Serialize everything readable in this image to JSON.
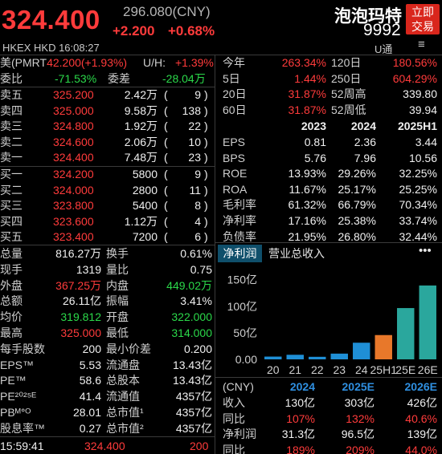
{
  "header": {
    "price": "324.400",
    "ref_price": "296.080(CNY)",
    "change": "+2.200",
    "change_pct": "+0.68%",
    "stock_name": "泡泡玛特",
    "stock_code": "9992",
    "trade_button": [
      "立即",
      "交易"
    ],
    "exchange_line": "HKEX  HKD  16:08:27",
    "u_tong": "U通",
    "menu": "≡"
  },
  "us_row": {
    "label": "美(PMRT",
    "value": "42.200(+1.93%)",
    "uh_label": "U/H:",
    "uh_value": "+1.39%"
  },
  "order_ratio": {
    "label1": "委比",
    "value1": "-71.53%",
    "label2": "委差",
    "value2": "-28.04万"
  },
  "asks": [
    {
      "label": "卖五",
      "price": "325.200",
      "volume": "2.42万",
      "count": "9"
    },
    {
      "label": "卖四",
      "price": "325.000",
      "volume": "9.58万",
      "count": "138"
    },
    {
      "label": "卖三",
      "price": "324.800",
      "volume": "1.92万",
      "count": "22"
    },
    {
      "label": "卖二",
      "price": "324.600",
      "volume": "2.06万",
      "count": "10"
    },
    {
      "label": "卖一",
      "price": "324.400",
      "volume": "7.48万",
      "count": "23"
    }
  ],
  "bids": [
    {
      "label": "买一",
      "price": "324.200",
      "volume": "5800",
      "count": "9"
    },
    {
      "label": "买二",
      "price": "324.000",
      "volume": "2800",
      "count": "11"
    },
    {
      "label": "买三",
      "price": "323.800",
      "volume": "5400",
      "count": "8"
    },
    {
      "label": "买四",
      "price": "323.600",
      "volume": "1.12万",
      "count": "4"
    },
    {
      "label": "买五",
      "price": "323.400",
      "volume": "7200",
      "count": "6"
    }
  ],
  "stats": [
    {
      "l1": "总量",
      "v1": "816.27万",
      "c1": "white",
      "l2": "换手",
      "v2": "0.61%",
      "c2": "white"
    },
    {
      "l1": "现手",
      "v1": "1319",
      "c1": "white",
      "l2": "量比",
      "v2": "0.75",
      "c2": "white"
    },
    {
      "l1": "外盘",
      "v1": "367.25万",
      "c1": "red",
      "l2": "内盘",
      "v2": "449.02万",
      "c2": "green"
    },
    {
      "l1": "总额",
      "v1": "26.11亿",
      "c1": "white",
      "l2": "振幅",
      "v2": "3.41%",
      "c2": "white"
    },
    {
      "l1": "均价",
      "v1": "319.812",
      "c1": "green",
      "l2": "开盘",
      "v2": "322.000",
      "c2": "green"
    },
    {
      "l1": "最高",
      "v1": "325.000",
      "c1": "red",
      "l2": "最低",
      "v2": "314.000",
      "c2": "green"
    },
    {
      "l1": "每手股数",
      "v1": "200",
      "c1": "white",
      "l2": "最小价差",
      "v2": "0.200",
      "c2": "white"
    },
    {
      "l1": "EPS™",
      "v1": "5.53",
      "c1": "white",
      "l2": "流通盘",
      "v2": "13.43亿",
      "c2": "white"
    },
    {
      "l1": "PE™",
      "v1": "58.6",
      "c1": "white",
      "l2": "总股本",
      "v2": "13.43亿",
      "c2": "white"
    },
    {
      "l1": "PE²⁰²⁵ᴱ",
      "v1": "41.4",
      "c1": "white",
      "l2": "流通值",
      "v2": "4357亿",
      "c2": "white"
    },
    {
      "l1": "PBᴹᐤᴼ",
      "v1": "28.01",
      "c1": "white",
      "l2": "总市值¹",
      "v2": "4357亿",
      "c2": "white"
    },
    {
      "l1": "股息率™",
      "v1": "0.27",
      "c1": "white",
      "l2": "总市值²",
      "v2": "4357亿",
      "c2": "white"
    }
  ],
  "last_tick": {
    "time": "15:59:41",
    "price": "324.400",
    "volume": "200"
  },
  "perf": [
    {
      "l1": "今年",
      "v1": "263.34%",
      "l2": "120日",
      "v2": "180.56%"
    },
    {
      "l1": "5日",
      "v1": "1.44%",
      "l2": "250日",
      "v2": "604.29%"
    },
    {
      "l1": "20日",
      "v1": "31.87%",
      "l2": "52周高",
      "v2": "339.80"
    },
    {
      "l1": "60日",
      "v1": "31.87%",
      "l2": "52周低",
      "v2": "39.94"
    }
  ],
  "fin": {
    "headers": [
      "2023",
      "2024",
      "2025H1"
    ],
    "rows": [
      {
        "label": "EPS",
        "values": [
          "0.81",
          "2.36",
          "3.44"
        ]
      },
      {
        "label": "BPS",
        "values": [
          "5.76",
          "7.96",
          "10.56"
        ]
      },
      {
        "label": "ROE",
        "values": [
          "13.93%",
          "29.26%",
          "32.25%"
        ]
      },
      {
        "label": "ROA",
        "values": [
          "11.67%",
          "25.17%",
          "25.25%"
        ]
      },
      {
        "label": "毛利率",
        "values": [
          "61.32%",
          "66.79%",
          "70.34%"
        ]
      },
      {
        "label": "净利率",
        "values": [
          "17.16%",
          "25.38%",
          "33.74%"
        ]
      },
      {
        "label": "负债率",
        "values": [
          "21.95%",
          "26.80%",
          "32.44%"
        ]
      }
    ]
  },
  "tabs": {
    "active": "净利润",
    "other": "营业总收入",
    "more": "•••"
  },
  "chart_data": {
    "type": "bar",
    "categories": [
      "20",
      "21",
      "22",
      "23",
      "24",
      "25H1",
      "25E",
      "26E"
    ],
    "values": [
      5.2,
      8.6,
      4.8,
      10.8,
      31.3,
      45.7,
      96.5,
      139.0
    ],
    "bar_colors": [
      "#1f8fd6",
      "#1f8fd6",
      "#1f8fd6",
      "#1f8fd6",
      "#1f8fd6",
      "#e8782a",
      "#2aa79d",
      "#2aa79d"
    ],
    "yticks": [
      "150亿",
      "100亿",
      "50亿",
      "0.00"
    ],
    "ytick_values": [
      150,
      100,
      50,
      0
    ],
    "ylim": [
      0,
      160
    ]
  },
  "forecast": {
    "unit": "(CNY)",
    "headers": [
      "2024",
      "2025E",
      "2026E"
    ],
    "rows": [
      {
        "label": "收入",
        "values": [
          "130亿",
          "303亿",
          "426亿"
        ],
        "color": "white"
      },
      {
        "label": "同比",
        "values": [
          "107%",
          "132%",
          "40.6%"
        ],
        "color": "red"
      },
      {
        "label": "净利润",
        "values": [
          "31.3亿",
          "96.5亿",
          "139亿"
        ],
        "color": "white"
      },
      {
        "label": "同比",
        "values": [
          "189%",
          "209%",
          "44.0%"
        ],
        "color": "red"
      }
    ]
  },
  "colors": {
    "up": "#ff3b3b",
    "down": "#2bd94a",
    "accent": "#d9261c",
    "tab": "#0f4f6b"
  }
}
